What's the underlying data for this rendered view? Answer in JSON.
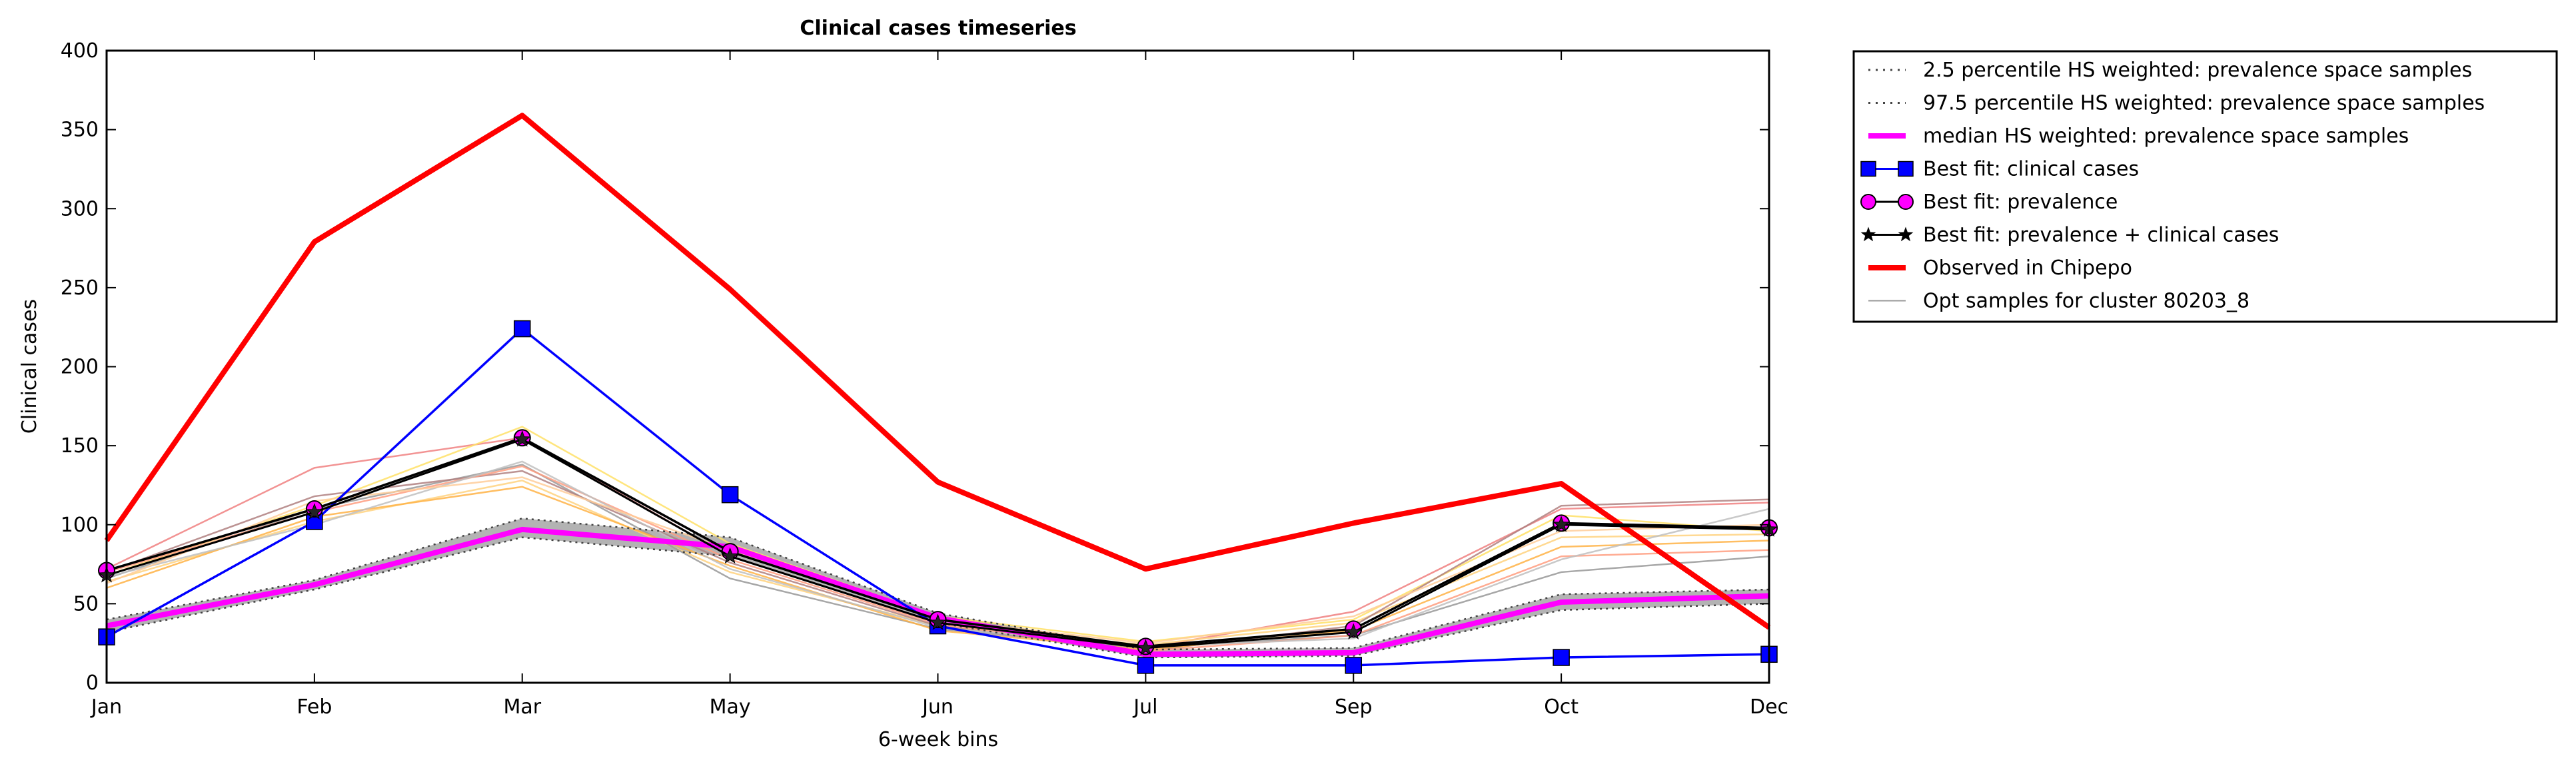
{
  "chart_data": {
    "type": "line",
    "title": "Clinical cases timeseries",
    "xlabel": "6-week bins",
    "ylabel": "Clinical cases",
    "categories": [
      "Jan",
      "Feb",
      "Mar",
      "May",
      "Jun",
      "Jul",
      "Sep",
      "Oct",
      "Dec"
    ],
    "ylim": [
      0,
      400
    ],
    "yticks": [
      0,
      50,
      100,
      150,
      200,
      250,
      300,
      350,
      400
    ],
    "grid": false,
    "legend_position": "outside-top-right",
    "legend": [
      {
        "label": "2.5 percentile HS weighted: prevalence space samples",
        "style": "dotted",
        "color": "#555555"
      },
      {
        "label": "97.5 percentile HS weighted: prevalence space samples",
        "style": "dotted",
        "color": "#555555"
      },
      {
        "label": "median HS weighted: prevalence space samples",
        "style": "solid",
        "color": "#ff00ff"
      },
      {
        "label": "Best fit: clinical cases",
        "style": "solid",
        "color": "#0000ff",
        "marker": "square"
      },
      {
        "label": "Best fit: prevalence",
        "style": "solid",
        "color": "#000000",
        "marker": "circle",
        "marker_color": "#ff00ff"
      },
      {
        "label": "Best fit: prevalence + clinical cases",
        "style": "solid",
        "color": "#000000",
        "marker": "star"
      },
      {
        "label": "Observed in Chipepo",
        "style": "solid",
        "color": "#ff0000"
      },
      {
        "label": "Opt samples for cluster 80203_8",
        "style": "solid",
        "color": "#999999"
      }
    ],
    "series": {
      "p2_5": [
        32,
        59,
        92,
        80,
        38,
        16,
        17,
        46,
        50
      ],
      "p97_5": [
        40,
        65,
        104,
        92,
        44,
        21,
        22,
        56,
        59
      ],
      "median": [
        36,
        62,
        97,
        86,
        41,
        18,
        19,
        51,
        55
      ],
      "best_clinical": [
        29,
        102,
        224,
        119,
        36,
        11,
        11,
        16,
        18
      ],
      "best_prevalence": [
        71,
        110,
        155,
        83,
        40,
        23,
        34,
        101,
        98
      ],
      "best_combined": [
        68,
        108,
        154,
        80,
        38,
        22,
        32,
        100,
        97
      ],
      "observed": [
        90,
        279,
        359,
        249,
        127,
        72,
        101,
        126,
        35
      ]
    },
    "opt_samples": [
      {
        "color": "#f08080",
        "values": [
          72,
          136,
          155,
          80,
          38,
          22,
          45,
          110,
          114
        ]
      },
      {
        "color": "#ffd27f",
        "values": [
          64,
          102,
          128,
          70,
          36,
          24,
          38,
          92,
          94
        ]
      },
      {
        "color": "#ffe066",
        "values": [
          68,
          112,
          162,
          88,
          42,
          26,
          40,
          106,
          96
        ]
      },
      {
        "color": "#999999",
        "values": [
          66,
          110,
          138,
          66,
          34,
          22,
          30,
          70,
          80
        ]
      },
      {
        "color": "#b08080",
        "values": [
          70,
          118,
          134,
          76,
          36,
          20,
          36,
          112,
          116
        ]
      },
      {
        "color": "#ffb347",
        "values": [
          60,
          105,
          124,
          74,
          33,
          21,
          33,
          86,
          90
        ]
      },
      {
        "color": "#ff9e80",
        "values": [
          70,
          108,
          137,
          78,
          37,
          20,
          30,
          80,
          84
        ]
      },
      {
        "color": "#c0c0c0",
        "values": [
          67,
          100,
          140,
          72,
          35,
          23,
          28,
          78,
          110
        ]
      },
      {
        "color": "#ffcc99",
        "values": [
          63,
          115,
          130,
          84,
          40,
          25,
          42,
          96,
          100
        ]
      }
    ]
  }
}
